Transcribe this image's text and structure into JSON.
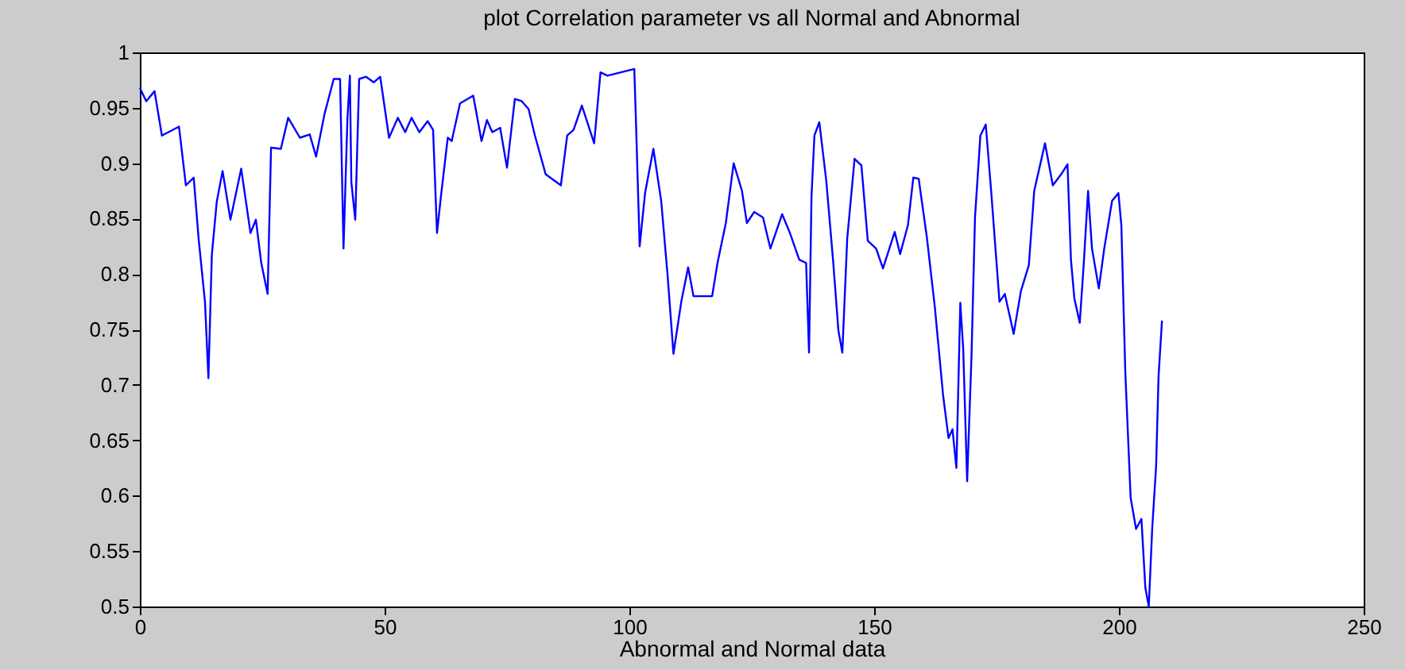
{
  "chart_data": {
    "type": "line",
    "title": "plot Correlation parameter vs all Normal and Abnormal",
    "xlabel": "Abnormal  and   Normal data",
    "xlim": [
      0,
      250
    ],
    "xticks": [
      0,
      50,
      100,
      150,
      200,
      250
    ],
    "ylim": [
      0.5,
      1
    ],
    "yticks": [
      0.5,
      0.55,
      0.6,
      0.65,
      0.7,
      0.75,
      0.8,
      0.85,
      0.9,
      0.95,
      1
    ],
    "grid": false,
    "marker": "none",
    "line_style": "solid",
    "series": [
      {
        "color": "#0000ff",
        "x": [
          0,
          1.3,
          3,
          4.5,
          8,
          9.4,
          11,
          12,
          13.3,
          14,
          14.7,
          15.7,
          16.9,
          18.5,
          20.7,
          22.6,
          23.7,
          24.8,
          26.1,
          26.8,
          28.8,
          30.3,
          32.7,
          34.7,
          36,
          37.7,
          39.6,
          40.9,
          41.6,
          42.4,
          42.9,
          43.2,
          44,
          44.8,
          46.2,
          47.8,
          49.1,
          50.9,
          52.7,
          54.2,
          55.5,
          57.1,
          58.8,
          59.9,
          60.7,
          61.5,
          62.9,
          63.7,
          65.4,
          68.1,
          69.8,
          70.9,
          72,
          73.6,
          75,
          76.6,
          78,
          79.4,
          80.7,
          82.9,
          86,
          87.3,
          88.6,
          90.3,
          92.8,
          94.1,
          95.5,
          101,
          101.3,
          102.1,
          103.2,
          104.9,
          106.5,
          107.8,
          109,
          110.6,
          112,
          113.1,
          116.9,
          118,
          119.7,
          121.3,
          123,
          124,
          125.5,
          127.3,
          128.8,
          131.2,
          132.8,
          134.7,
          136.1,
          136.7,
          137.2,
          137.8,
          138.8,
          140.2,
          141.6,
          142.7,
          143.5,
          144.5,
          146,
          147.4,
          148.7,
          150.4,
          151.8,
          154.2,
          155.3,
          156.9,
          158,
          159.1,
          160.8,
          162.4,
          164.1,
          165.2,
          166,
          166.8,
          167.6,
          168.2,
          169,
          169.9,
          170.6,
          171.7,
          172.8,
          173.9,
          175.6,
          176.7,
          178.5,
          180,
          181.6,
          182.7,
          184.9,
          186.5,
          188.2,
          189.5,
          190.2,
          190.9,
          192,
          192.8,
          193.7,
          194.5,
          195.9,
          197,
          198.6,
          199.9,
          200.5,
          201.3,
          202.4,
          203.5,
          204.6,
          205.4,
          206.1,
          206.8,
          207.6,
          208.1,
          208.8
        ],
        "values": [
          0.968,
          0.956,
          0.965,
          0.925,
          0.933,
          0.88,
          0.887,
          0.832,
          0.775,
          0.706,
          0.817,
          0.865,
          0.893,
          0.849,
          0.895,
          0.837,
          0.849,
          0.81,
          0.782,
          0.914,
          0.913,
          0.941,
          0.923,
          0.926,
          0.906,
          0.944,
          0.976,
          0.976,
          0.823,
          0.94,
          0.979,
          0.883,
          0.849,
          0.976,
          0.978,
          0.973,
          0.978,
          0.923,
          0.941,
          0.928,
          0.941,
          0.928,
          0.938,
          0.93,
          0.837,
          0.87,
          0.923,
          0.92,
          0.954,
          0.961,
          0.92,
          0.939,
          0.928,
          0.932,
          0.896,
          0.958,
          0.956,
          0.949,
          0.925,
          0.89,
          0.88,
          0.925,
          0.93,
          0.952,
          0.918,
          0.982,
          0.979,
          0.985,
          0.944,
          0.825,
          0.873,
          0.913,
          0.866,
          0.799,
          0.728,
          0.775,
          0.806,
          0.78,
          0.78,
          0.81,
          0.846,
          0.9,
          0.875,
          0.846,
          0.856,
          0.851,
          0.823,
          0.854,
          0.837,
          0.813,
          0.81,
          0.729,
          0.87,
          0.925,
          0.937,
          0.885,
          0.813,
          0.749,
          0.729,
          0.832,
          0.904,
          0.898,
          0.83,
          0.823,
          0.805,
          0.838,
          0.818,
          0.844,
          0.887,
          0.886,
          0.832,
          0.77,
          0.69,
          0.652,
          0.66,
          0.625,
          0.774,
          0.732,
          0.613,
          0.728,
          0.851,
          0.925,
          0.935,
          0.875,
          0.775,
          0.782,
          0.746,
          0.785,
          0.808,
          0.875,
          0.918,
          0.88,
          0.89,
          0.899,
          0.813,
          0.778,
          0.756,
          0.808,
          0.875,
          0.823,
          0.787,
          0.823,
          0.866,
          0.873,
          0.844,
          0.712,
          0.598,
          0.57,
          0.579,
          0.517,
          0.5,
          0.57,
          0.627,
          0.708,
          0.758
        ]
      }
    ]
  }
}
